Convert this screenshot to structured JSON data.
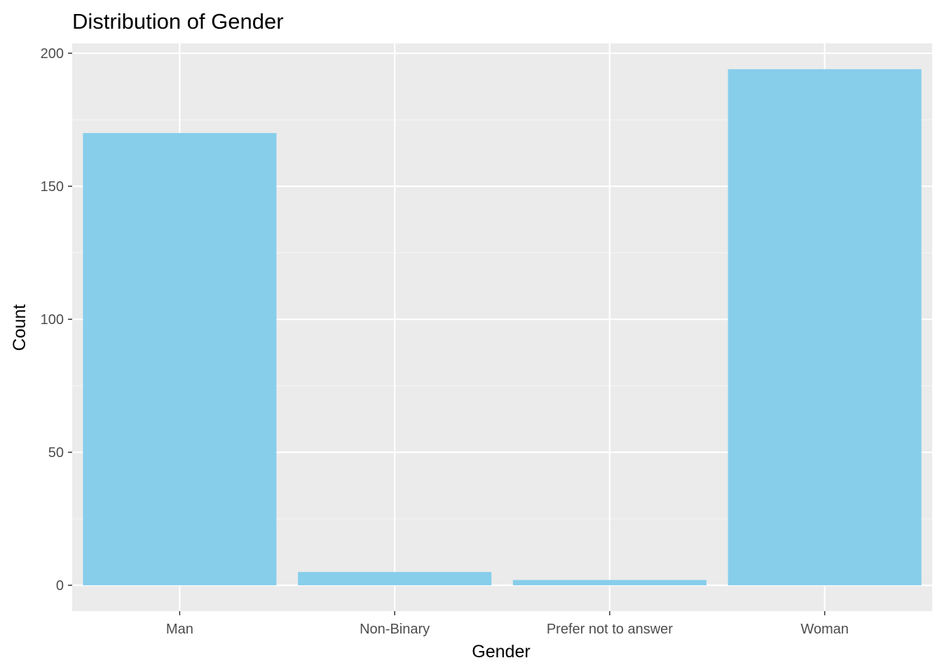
{
  "colors": {
    "panel_background": "#ebebeb",
    "grid_major": "#ffffff",
    "grid_minor": "#f5f5f5",
    "bar_fill": "#87ceeb",
    "tick_text": "#4d4d4d",
    "tick_mark": "#333333"
  },
  "chart_data": {
    "type": "bar",
    "title": "Distribution of Gender",
    "xlabel": "Gender",
    "ylabel": "Count",
    "categories": [
      "Man",
      "Non-Binary",
      "Prefer not to answer",
      "Woman"
    ],
    "values": [
      170,
      5,
      2,
      194
    ],
    "ylim": [
      -9.7,
      203.7
    ],
    "yticks": [
      0,
      50,
      100,
      150,
      200
    ],
    "ytick_labels": [
      "0",
      "50",
      "100",
      "150",
      "200"
    ],
    "grid": true,
    "legend": "none"
  }
}
